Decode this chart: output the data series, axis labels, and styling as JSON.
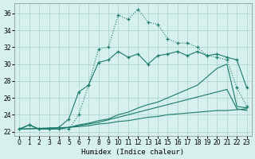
{
  "xlabel": "Humidex (Indice chaleur)",
  "xlim": [
    -0.5,
    23.5
  ],
  "ylim": [
    21.5,
    37.2
  ],
  "xticks": [
    0,
    1,
    2,
    3,
    4,
    5,
    6,
    7,
    8,
    9,
    10,
    11,
    12,
    13,
    14,
    15,
    16,
    17,
    18,
    19,
    20,
    21,
    22,
    23
  ],
  "yticks": [
    22,
    24,
    26,
    28,
    30,
    32,
    34,
    36
  ],
  "bg_color": "#d6f0ee",
  "grid_color": "#b4d9d6",
  "line_color": "#1a7a6a",
  "curve_dotted_x": [
    0,
    1,
    2,
    3,
    4,
    5,
    6,
    7,
    8,
    9,
    10,
    11,
    12,
    13,
    14,
    15,
    16,
    17,
    18,
    19,
    20,
    21,
    22,
    23
  ],
  "curve_dotted_y": [
    22.3,
    22.8,
    22.3,
    22.3,
    22.3,
    22.3,
    24.0,
    27.5,
    31.8,
    32.0,
    35.8,
    35.3,
    36.5,
    35.0,
    34.7,
    33.0,
    32.5,
    32.5,
    32.0,
    31.0,
    30.8,
    30.5,
    27.2,
    25.0
  ],
  "curve_solid1_x": [
    0,
    1,
    2,
    3,
    4,
    5,
    6,
    7,
    8,
    9,
    10,
    11,
    12,
    13,
    14,
    15,
    16,
    17,
    18,
    19,
    20,
    21,
    22,
    23
  ],
  "curve_solid1_y": [
    22.3,
    22.8,
    22.3,
    22.3,
    22.5,
    23.5,
    26.7,
    27.5,
    30.2,
    30.5,
    31.5,
    30.8,
    31.2,
    30.0,
    31.0,
    31.2,
    31.5,
    31.0,
    31.5,
    31.0,
    31.2,
    30.8,
    30.5,
    27.2
  ],
  "curve_diag1_x": [
    0,
    5,
    6,
    7,
    8,
    9,
    10,
    11,
    12,
    13,
    14,
    15,
    16,
    17,
    18,
    19,
    20,
    21,
    22,
    23
  ],
  "curve_diag1_y": [
    22.3,
    22.5,
    22.8,
    23.0,
    23.3,
    23.5,
    24.0,
    24.3,
    24.8,
    25.2,
    25.5,
    26.0,
    26.5,
    27.0,
    27.5,
    28.5,
    29.5,
    30.0,
    25.0,
    24.8
  ],
  "curve_diag2_x": [
    0,
    5,
    6,
    7,
    8,
    9,
    10,
    11,
    12,
    13,
    14,
    15,
    16,
    17,
    18,
    19,
    20,
    21,
    22,
    23
  ],
  "curve_diag2_y": [
    22.3,
    22.5,
    22.7,
    22.9,
    23.1,
    23.4,
    23.7,
    24.0,
    24.3,
    24.6,
    24.9,
    25.2,
    25.5,
    25.8,
    26.1,
    26.4,
    26.7,
    27.0,
    24.7,
    24.5
  ],
  "curve_flat_x": [
    0,
    1,
    2,
    3,
    4,
    5,
    6,
    7,
    8,
    9,
    10,
    11,
    12,
    13,
    14,
    15,
    16,
    17,
    18,
    19,
    20,
    21,
    22,
    23
  ],
  "curve_flat_y": [
    22.3,
    22.8,
    22.3,
    22.3,
    22.3,
    22.5,
    22.6,
    22.7,
    22.9,
    23.0,
    23.2,
    23.3,
    23.5,
    23.7,
    23.8,
    24.0,
    24.1,
    24.2,
    24.3,
    24.4,
    24.5,
    24.5,
    24.6,
    24.7
  ]
}
